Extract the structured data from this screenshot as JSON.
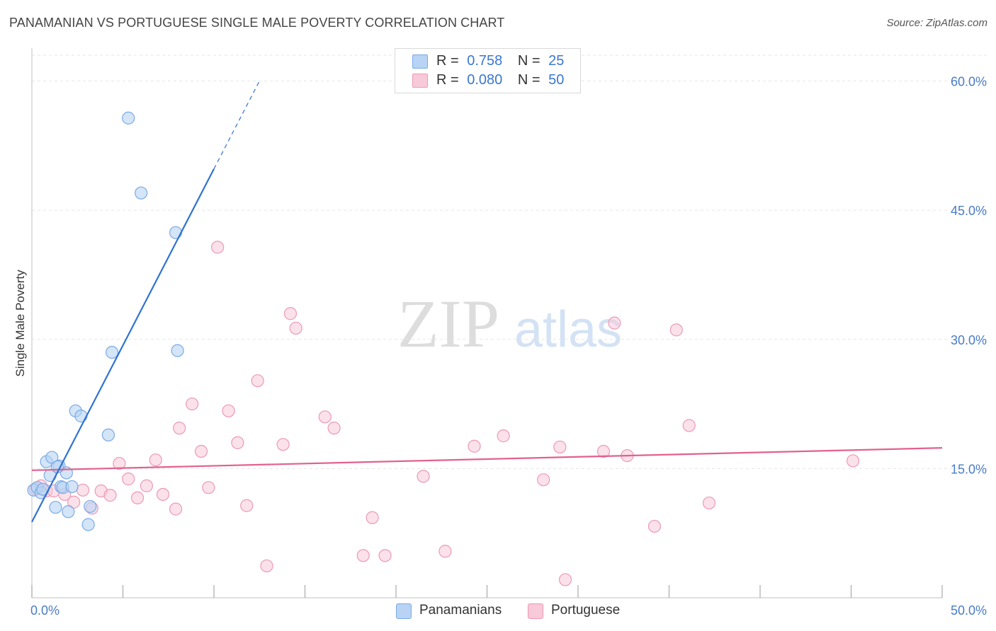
{
  "header": {
    "title": "PANAMANIAN VS PORTUGUESE SINGLE MALE POVERTY CORRELATION CHART",
    "source": "Source: ZipAtlas.com"
  },
  "watermark": {
    "zip": "ZIP",
    "atlas": "atlas"
  },
  "legend": {
    "panamanians": {
      "r_label": "R =",
      "r_value": "0.758",
      "n_label": "N =",
      "n_value": "25"
    },
    "portuguese": {
      "r_label": "R =",
      "r_value": "0.080",
      "n_label": "N =",
      "n_value": "50"
    }
  },
  "colors": {
    "panamanians_fill": "#b8d3f3",
    "panamanians_stroke": "#7aaae6",
    "panamanians_line": "#2f73d0",
    "portuguese_fill": "#f8c9d8",
    "portuguese_stroke": "#ec9ab5",
    "portuguese_line": "#e2618e",
    "tick_label": "#4a7cc7"
  },
  "chart_data": {
    "type": "scatter",
    "title": "PANAMANIAN VS PORTUGUESE SINGLE MALE POVERTY CORRELATION CHART",
    "xlabel": "",
    "ylabel": "Single Male Poverty",
    "xlim": [
      0,
      50
    ],
    "ylim": [
      0,
      63
    ],
    "x_tick_labels": [
      "0.0%",
      "50.0%"
    ],
    "y_ticks": [
      15,
      30,
      45,
      60
    ],
    "y_tick_labels": [
      "15.0%",
      "30.0%",
      "45.0%",
      "60.0%"
    ],
    "grid": true,
    "legend_position": "top-center",
    "series": [
      {
        "name": "Panamanians",
        "r": 0.758,
        "n": 25,
        "points": [
          {
            "x": 0.1,
            "y": 12.5
          },
          {
            "x": 0.3,
            "y": 12.8
          },
          {
            "x": 0.5,
            "y": 12.2
          },
          {
            "x": 0.6,
            "y": 12.6
          },
          {
            "x": 0.8,
            "y": 15.8
          },
          {
            "x": 1.0,
            "y": 14.2
          },
          {
            "x": 1.1,
            "y": 16.3
          },
          {
            "x": 1.3,
            "y": 10.5
          },
          {
            "x": 1.5,
            "y": 15.3
          },
          {
            "x": 1.6,
            "y": 12.9
          },
          {
            "x": 1.7,
            "y": 12.8
          },
          {
            "x": 1.9,
            "y": 14.5
          },
          {
            "x": 2.0,
            "y": 10.0
          },
          {
            "x": 2.2,
            "y": 12.9
          },
          {
            "x": 2.4,
            "y": 21.7
          },
          {
            "x": 2.7,
            "y": 21.1
          },
          {
            "x": 3.1,
            "y": 8.5
          },
          {
            "x": 3.2,
            "y": 10.6
          },
          {
            "x": 4.2,
            "y": 18.9
          },
          {
            "x": 4.4,
            "y": 28.5
          },
          {
            "x": 5.3,
            "y": 55.7
          },
          {
            "x": 6.0,
            "y": 47.0
          },
          {
            "x": 7.9,
            "y": 42.4
          },
          {
            "x": 8.0,
            "y": 28.7
          },
          {
            "x": 1.4,
            "y": 15.2
          }
        ],
        "trend": {
          "x0": 0.0,
          "y0": 8.8,
          "x1": 10.0,
          "y1": 49.8,
          "dash_x1": 12.5,
          "dash_y1": 60.0
        }
      },
      {
        "name": "Portuguese",
        "r": 0.08,
        "n": 50,
        "points": [
          {
            "x": 0.2,
            "y": 12.6
          },
          {
            "x": 0.5,
            "y": 13.0
          },
          {
            "x": 0.8,
            "y": 12.4
          },
          {
            "x": 1.2,
            "y": 12.4
          },
          {
            "x": 1.8,
            "y": 12.0
          },
          {
            "x": 2.3,
            "y": 11.1
          },
          {
            "x": 2.8,
            "y": 12.5
          },
          {
            "x": 3.3,
            "y": 10.4
          },
          {
            "x": 3.8,
            "y": 12.4
          },
          {
            "x": 4.3,
            "y": 11.9
          },
          {
            "x": 4.8,
            "y": 15.6
          },
          {
            "x": 5.3,
            "y": 13.8
          },
          {
            "x": 5.8,
            "y": 11.6
          },
          {
            "x": 6.3,
            "y": 13.0
          },
          {
            "x": 6.8,
            "y": 16.0
          },
          {
            "x": 7.2,
            "y": 12.0
          },
          {
            "x": 7.9,
            "y": 10.3
          },
          {
            "x": 8.1,
            "y": 19.7
          },
          {
            "x": 8.8,
            "y": 22.5
          },
          {
            "x": 9.3,
            "y": 17.0
          },
          {
            "x": 9.7,
            "y": 12.8
          },
          {
            "x": 10.2,
            "y": 40.7
          },
          {
            "x": 10.8,
            "y": 21.7
          },
          {
            "x": 11.3,
            "y": 18.0
          },
          {
            "x": 11.8,
            "y": 10.7
          },
          {
            "x": 12.4,
            "y": 25.2
          },
          {
            "x": 12.9,
            "y": 3.7
          },
          {
            "x": 13.8,
            "y": 17.8
          },
          {
            "x": 14.2,
            "y": 33.0
          },
          {
            "x": 14.5,
            "y": 31.3
          },
          {
            "x": 16.1,
            "y": 21.0
          },
          {
            "x": 16.6,
            "y": 19.7
          },
          {
            "x": 18.2,
            "y": 4.9
          },
          {
            "x": 18.7,
            "y": 9.3
          },
          {
            "x": 19.4,
            "y": 4.9
          },
          {
            "x": 21.5,
            "y": 14.1
          },
          {
            "x": 22.7,
            "y": 5.4
          },
          {
            "x": 24.3,
            "y": 17.6
          },
          {
            "x": 25.9,
            "y": 18.8
          },
          {
            "x": 28.1,
            "y": 13.7
          },
          {
            "x": 29.0,
            "y": 17.5
          },
          {
            "x": 29.3,
            "y": 2.1
          },
          {
            "x": 31.4,
            "y": 17.0
          },
          {
            "x": 32.0,
            "y": 31.9
          },
          {
            "x": 32.7,
            "y": 16.5
          },
          {
            "x": 34.2,
            "y": 8.3
          },
          {
            "x": 35.4,
            "y": 31.1
          },
          {
            "x": 36.1,
            "y": 20.0
          },
          {
            "x": 37.2,
            "y": 11.0
          },
          {
            "x": 45.1,
            "y": 15.9
          }
        ],
        "trend": {
          "x0": 0.0,
          "y0": 14.8,
          "x1": 50.0,
          "y1": 17.4
        }
      }
    ]
  },
  "bottom_legend": {
    "panamanians": "Panamanians",
    "portuguese": "Portuguese"
  }
}
